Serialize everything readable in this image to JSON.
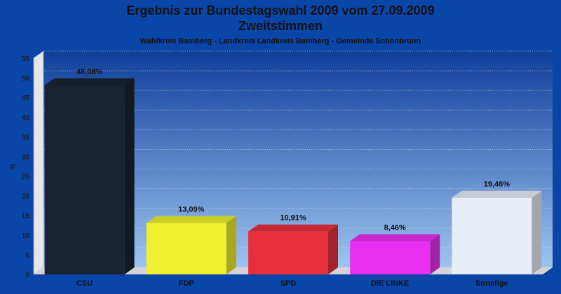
{
  "chart_data": {
    "type": "bar",
    "title_line1": "Ergebnis zur Bundestagswahl 2009 vom 27.09.2009",
    "title_line2": "Zweitstimmen",
    "subtitle": "Wahlkreis Bamberg - Landkreis Landkreis Bamberg - Gemeinde Schönbrunn",
    "ylabel": "%",
    "ylim": [
      0,
      55
    ],
    "yticks": [
      0,
      5,
      10,
      15,
      20,
      25,
      30,
      35,
      40,
      45,
      50,
      55
    ],
    "grid": true,
    "categories": [
      "CSU",
      "FDP",
      "SPD",
      "DIE LINKE",
      "Sonstige"
    ],
    "values": [
      48.08,
      13.09,
      10.91,
      8.46,
      19.46
    ],
    "value_labels": [
      "48,08%",
      "13,09%",
      "10,91%",
      "8,46%",
      "19,46%"
    ],
    "colors": [
      "#1a2233",
      "#eef030",
      "#e8303c",
      "#e830f0",
      "#e8eef8"
    ]
  }
}
